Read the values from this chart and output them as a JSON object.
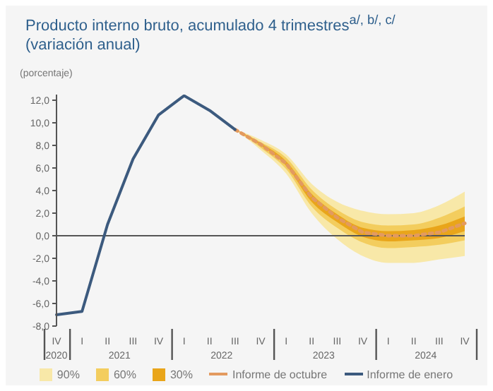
{
  "chart_data": {
    "type": "line",
    "title": "Producto interno bruto, acumulado 4 trimestres$^{a/, b/, c/}$",
    "subtitle": "(variación anual)",
    "ylabel": "(porcentaje)",
    "categories": [
      "IV",
      "I",
      "II",
      "III",
      "IV",
      "I",
      "II",
      "III",
      "IV",
      "I",
      "II",
      "III",
      "IV",
      "I",
      "II",
      "III",
      "IV"
    ],
    "annotations": [
      "2020",
      "2021",
      "2022",
      "2023",
      "2024"
    ],
    "ylim": [
      -8,
      12.5
    ],
    "yticks": [
      {
        "value": -8,
        "label": "-8,0"
      },
      {
        "value": -6,
        "label": "-6,0"
      },
      {
        "value": -4,
        "label": "-4,0"
      },
      {
        "value": -2,
        "label": "-2,0"
      },
      {
        "value": 0,
        "label": "0,0"
      },
      {
        "value": 2,
        "label": "2,0"
      },
      {
        "value": 4,
        "label": "4,0"
      },
      {
        "value": 6,
        "label": "6,0"
      },
      {
        "value": 8,
        "label": "8,0"
      },
      {
        "value": 10,
        "label": "10,0"
      },
      {
        "value": 12,
        "label": "12,0"
      }
    ],
    "ref_lines": [
      {
        "axis": "y",
        "value": 0,
        "color": "#555555"
      }
    ],
    "grid": false,
    "legend": "bottom",
    "series": [
      {
        "name": "90%",
        "type": "area",
        "color": "#f8e8a8",
        "values": [
          null,
          null,
          null,
          null,
          null,
          null,
          null,
          null,
          null,
          null,
          null,
          null,
          null,
          null,
          null,
          null,
          null
        ],
        "lower": [
          null,
          null,
          null,
          null,
          null,
          null,
          null,
          9.4,
          7.6,
          5.5,
          2.0,
          -0.3,
          -1.8,
          -2.4,
          -2.4,
          -2.1,
          -1.8
        ],
        "upper": [
          null,
          null,
          null,
          null,
          null,
          null,
          null,
          9.4,
          8.5,
          7.2,
          4.6,
          3.0,
          2.2,
          1.9,
          2.0,
          2.7,
          3.9
        ]
      },
      {
        "name": "60%",
        "type": "area",
        "color": "#f3cd5e",
        "values": [
          null,
          null,
          null,
          null,
          null,
          null,
          null,
          null,
          null,
          null,
          null,
          null,
          null,
          null,
          null,
          null,
          null
        ],
        "lower": [
          null,
          null,
          null,
          null,
          null,
          null,
          null,
          9.4,
          7.8,
          5.9,
          2.6,
          0.7,
          -0.6,
          -1.1,
          -1.0,
          -0.8,
          -0.4
        ],
        "upper": [
          null,
          null,
          null,
          null,
          null,
          null,
          null,
          9.4,
          8.3,
          6.9,
          4.1,
          2.3,
          1.2,
          0.9,
          1.0,
          1.6,
          2.6
        ]
      },
      {
        "name": "30%",
        "type": "area",
        "color": "#e9a51a",
        "values": [
          null,
          null,
          null,
          null,
          null,
          null,
          null,
          null,
          null,
          null,
          null,
          null,
          null,
          null,
          null,
          null,
          null
        ],
        "lower": [
          null,
          null,
          null,
          null,
          null,
          null,
          null,
          9.4,
          8.0,
          6.2,
          3.0,
          1.2,
          -0.1,
          -0.5,
          -0.4,
          -0.2,
          0.4
        ],
        "upper": [
          null,
          null,
          null,
          null,
          null,
          null,
          null,
          9.4,
          8.2,
          6.6,
          3.7,
          1.9,
          0.7,
          0.4,
          0.5,
          0.9,
          1.7
        ]
      },
      {
        "name": "Informe de octubre",
        "color": "#e39a5f",
        "line_style": "dotted",
        "values": [
          null,
          null,
          null,
          null,
          null,
          null,
          null,
          9.4,
          8.1,
          6.4,
          3.4,
          1.6,
          0.3,
          0.0,
          0.0,
          0.3,
          1.1
        ]
      },
      {
        "name": "Informe de enero",
        "color": "#3c5a7e",
        "line_style": "solid",
        "values": [
          -7.0,
          -6.7,
          1.0,
          6.8,
          10.7,
          12.4,
          11.1,
          9.4,
          null,
          null,
          null,
          null,
          null,
          null,
          null,
          null,
          null
        ]
      }
    ]
  }
}
